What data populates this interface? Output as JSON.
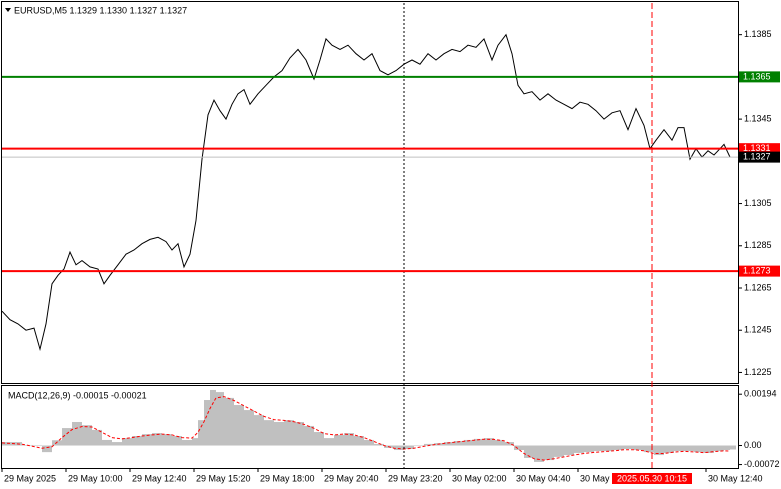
{
  "chart_data": [
    {
      "type": "line",
      "title": "EURUSD,M5  1.1329 1.1330 1.1327 1.1327",
      "color": "#000000",
      "xlim": [
        0,
        368
      ],
      "ylim": [
        1.122,
        1.14
      ],
      "yticks": [
        1.1225,
        1.1245,
        1.1265,
        1.1285,
        1.1305,
        1.1345,
        1.1385
      ],
      "levels": [
        {
          "value": 1.1365,
          "color": "#008000"
        },
        {
          "value": 1.1331,
          "color": "#ff0000"
        },
        {
          "value": 1.1273,
          "color": "#ff0000"
        },
        {
          "value": 1.1327,
          "color": "#c0c0c0",
          "box": "#000000"
        }
      ],
      "vlines": [
        {
          "value": 201,
          "color": "#000000"
        },
        {
          "value": 325,
          "color": "#ff0000",
          "label": "2025.05.30 10:15"
        }
      ],
      "x": [
        0,
        4,
        8,
        12,
        16,
        19,
        22,
        25,
        28,
        31,
        34,
        37,
        40,
        44,
        48,
        51,
        54,
        58,
        62,
        66,
        70,
        74,
        78,
        82,
        85,
        88,
        91,
        94,
        97,
        100,
        103,
        106,
        109,
        112,
        115,
        118,
        121,
        124,
        128,
        132,
        136,
        140,
        144,
        148,
        152,
        156,
        159,
        162,
        165,
        169,
        173,
        177,
        181,
        185,
        189,
        193,
        197,
        201,
        205,
        209,
        213,
        217,
        221,
        225,
        229,
        233,
        237,
        241,
        245,
        248,
        252,
        255,
        258,
        261,
        265,
        269,
        273,
        277,
        281,
        285,
        289,
        293,
        297,
        301,
        305,
        309,
        313,
        317,
        321,
        324,
        327,
        331,
        335,
        338,
        341,
        344,
        347,
        350,
        353,
        356,
        359,
        361,
        364
      ],
      "values": [
        1.1254,
        1.125,
        1.1248,
        1.1245,
        1.1246,
        1.1236,
        1.1248,
        1.1267,
        1.1271,
        1.1274,
        1.1282,
        1.1276,
        1.1278,
        1.1275,
        1.1274,
        1.1267,
        1.1271,
        1.1276,
        1.1281,
        1.1283,
        1.1286,
        1.1288,
        1.1289,
        1.1287,
        1.1283,
        1.1286,
        1.1275,
        1.1281,
        1.1297,
        1.1326,
        1.1347,
        1.1354,
        1.1349,
        1.1345,
        1.1352,
        1.1357,
        1.1359,
        1.1352,
        1.1357,
        1.1361,
        1.1365,
        1.1368,
        1.1374,
        1.1378,
        1.1373,
        1.1364,
        1.1373,
        1.1383,
        1.138,
        1.1378,
        1.138,
        1.1376,
        1.1373,
        1.1376,
        1.1368,
        1.1366,
        1.1368,
        1.1371,
        1.1373,
        1.1371,
        1.1376,
        1.1373,
        1.1376,
        1.1378,
        1.1377,
        1.138,
        1.1379,
        1.1383,
        1.1373,
        1.138,
        1.1385,
        1.1376,
        1.1361,
        1.1357,
        1.1358,
        1.1354,
        1.1357,
        1.1354,
        1.1352,
        1.135,
        1.1353,
        1.1352,
        1.1349,
        1.1345,
        1.1348,
        1.1349,
        1.134,
        1.135,
        1.1342,
        1.1331,
        1.1335,
        1.134,
        1.1335,
        1.1341,
        1.1341,
        1.1326,
        1.1331,
        1.1327,
        1.133,
        1.1328,
        1.1331,
        1.1333,
        1.1327
      ]
    },
    {
      "type": "macd",
      "title": "MACD(12,26,9) -0.00015 -0.00021",
      "xlim": [
        0,
        368
      ],
      "ylim": [
        -0.00085,
        0.00225
      ],
      "yticks": [
        0.00194,
        {
          "value": 0,
          "label": "0.00"
        },
        -0.00072
      ],
      "xticks": [
        {
          "value": 0,
          "label": "29 May 2025"
        },
        {
          "value": 32,
          "label": "29 May 10:00"
        },
        {
          "value": 64,
          "label": "29 May 12:40"
        },
        {
          "value": 96,
          "label": "29 May 15:20"
        },
        {
          "value": 128,
          "label": "29 May 18:00"
        },
        {
          "value": 160,
          "label": "29 May 20:40"
        },
        {
          "value": 192,
          "label": "29 May 23:20"
        },
        {
          "value": 224,
          "label": "30 May 02:00"
        },
        {
          "value": 256,
          "label": "30 May 04:40"
        },
        {
          "value": 288,
          "label": "30 May"
        },
        {
          "value": 352,
          "label": "30 May 12:40"
        }
      ],
      "x": [
        0,
        10,
        20,
        25,
        30,
        35,
        40,
        45,
        50,
        55,
        60,
        65,
        70,
        75,
        80,
        85,
        90,
        95,
        98,
        101,
        104,
        107,
        111,
        116,
        121,
        126,
        131,
        136,
        141,
        146,
        151,
        156,
        161,
        166,
        171,
        176,
        181,
        186,
        191,
        196,
        201,
        206,
        211,
        216,
        221,
        226,
        231,
        236,
        241,
        246,
        251,
        256,
        261,
        266,
        271,
        276,
        281,
        286,
        291,
        296,
        301,
        306,
        311,
        316,
        321,
        326,
        331,
        336,
        341,
        346,
        351,
        356,
        361,
        364
      ],
      "series": [
        {
          "color": "#c0c0c0",
          "values": [
            0.00013,
            2e-05,
            -0.00025,
            0.0002,
            0.00066,
            0.00089,
            0.00077,
            0.00059,
            0.00021,
            0.00013,
            0.00028,
            0.00036,
            0.00043,
            0.00047,
            0.00043,
            0.00036,
            0.00021,
            0.00028,
            0.00096,
            0.00172,
            0.0021,
            0.00202,
            0.0018,
            0.00153,
            0.00134,
            0.00115,
            0.00096,
            0.00089,
            0.00096,
            0.00089,
            0.00074,
            0.00051,
            0.00028,
            0.0004,
            0.00047,
            0.00036,
            0.00021,
            6e-05,
            -9e-05,
            -0.00017,
            -0.00013,
            -2e-05,
            6e-05,
            9e-05,
            0.00013,
            0.00017,
            0.00021,
            0.00025,
            0.00028,
            0.00021,
            0.00013,
            -0.00017,
            -0.00047,
            -0.00062,
            -0.00055,
            -0.00043,
            -0.00036,
            -0.00028,
            -0.00025,
            -0.00021,
            -0.00021,
            -0.00017,
            -0.00013,
            -0.00017,
            -0.00025,
            -0.00036,
            -0.00028,
            -0.00021,
            -0.00021,
            -0.00025,
            -0.00028,
            -0.00021,
            -0.00017,
            -0.00015
          ]
        },
        {
          "color": "#ff0000",
          "values": [
            0.0001,
            5e-05,
            -0.0001,
            -5e-05,
            0.0003,
            0.0006,
            0.00072,
            0.0007,
            0.0005,
            0.0003,
            0.00025,
            0.0003,
            0.00036,
            0.0004,
            0.00043,
            0.0004,
            0.0003,
            0.00028,
            0.0005,
            0.0009,
            0.0014,
            0.0018,
            0.00185,
            0.0017,
            0.0015,
            0.0013,
            0.0011,
            0.00098,
            0.00095,
            0.0009,
            0.0008,
            0.00065,
            0.00045,
            0.0004,
            0.00043,
            0.0004,
            0.0003,
            0.00015,
            0,
            -0.0001,
            -0.00013,
            -0.0001,
            -3e-05,
            3e-05,
            8e-05,
            0.00012,
            0.00016,
            0.0002,
            0.00024,
            0.00023,
            0.00018,
            0,
            -0.0003,
            -0.0005,
            -0.00055,
            -0.0005,
            -0.00043,
            -0.00036,
            -0.0003,
            -0.00026,
            -0.00023,
            -0.0002,
            -0.00016,
            -0.00016,
            -0.0002,
            -0.0003,
            -0.0003,
            -0.00025,
            -0.00022,
            -0.00024,
            -0.00027,
            -0.00023,
            -0.0002,
            -0.00021
          ]
        }
      ]
    }
  ]
}
